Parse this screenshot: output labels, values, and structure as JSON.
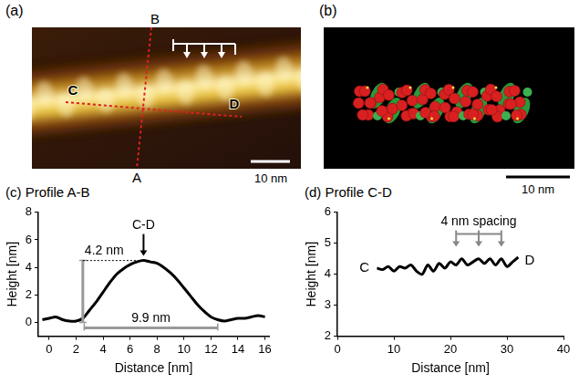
{
  "images": [
    {
      "panel": "(a)",
      "markers": [
        "A",
        "B",
        "C",
        "D"
      ],
      "scale_bar": "10 nm"
    },
    {
      "panel": "(b)",
      "scale_bar": "10 nm"
    }
  ],
  "chart_data": [
    {
      "panel": "(c)",
      "type": "line",
      "title": "Profile A-B",
      "x_label": "Distance [nm]",
      "y_label": "Height [nm]",
      "x": [
        -0.5,
        0,
        0.5,
        1,
        1.5,
        2,
        2.5,
        3,
        3.5,
        4,
        4.5,
        5,
        5.5,
        6,
        6.5,
        7,
        7.5,
        8,
        8.5,
        9,
        9.5,
        10,
        10.5,
        11,
        11.5,
        12,
        12.5,
        13,
        13.5,
        14,
        14.5,
        15,
        15.5,
        16
      ],
      "values": [
        0.2,
        0.3,
        0.4,
        0.2,
        0.1,
        0.1,
        0.3,
        0.9,
        1.5,
        2.2,
        2.9,
        3.5,
        3.9,
        4.2,
        4.4,
        4.5,
        4.4,
        4.3,
        4.0,
        3.6,
        3.1,
        2.5,
        1.9,
        1.3,
        0.8,
        0.4,
        0.2,
        0.1,
        0.2,
        0.3,
        0.3,
        0.4,
        0.5,
        0.4
      ],
      "color": "#000000",
      "xlim": [
        -0.8,
        16.3
      ],
      "xticks": [
        0,
        2,
        4,
        6,
        8,
        10,
        12,
        14,
        16
      ],
      "ylim": [
        -1,
        8
      ],
      "yticks": [
        0,
        2,
        4,
        6,
        8
      ],
      "grid": false,
      "annotations": [
        {
          "kind": "height",
          "text": "4.2 nm",
          "x": 2.5,
          "y0": 0,
          "y1": 4.5,
          "x_peak": 7
        },
        {
          "kind": "width",
          "text": "9.9 nm",
          "x0": 2.6,
          "x1": 12.5,
          "y": -0.4
        },
        {
          "kind": "arrow",
          "text": "C-D",
          "x": 7,
          "y": 4.7
        }
      ]
    },
    {
      "panel": "(d)",
      "type": "line",
      "title": "Profile C-D",
      "x_label": "Distance [nm]",
      "y_label": "Height [nm]",
      "x": [
        7,
        8,
        9,
        10,
        11,
        12,
        13,
        14,
        15,
        16,
        17,
        18,
        19,
        20,
        21,
        22,
        23,
        24,
        25,
        26,
        27,
        28,
        29,
        30,
        31,
        32
      ],
      "values": [
        4.2,
        4.15,
        4.25,
        4.1,
        4.25,
        4.2,
        4.3,
        4.1,
        4.0,
        4.3,
        4.1,
        4.35,
        4.2,
        4.4,
        4.3,
        4.5,
        4.3,
        4.4,
        4.5,
        4.35,
        4.5,
        4.3,
        4.5,
        4.25,
        4.4,
        4.55
      ],
      "color": "#000000",
      "xlim": [
        0,
        40
      ],
      "xticks": [
        0,
        10,
        20,
        30,
        40
      ],
      "ylim": [
        2,
        6
      ],
      "yticks": [
        2,
        3,
        4,
        5,
        6
      ],
      "grid": false,
      "annotations": [
        {
          "kind": "label",
          "text": "C",
          "x": 4.8,
          "y": 4.2
        },
        {
          "kind": "label",
          "text": "D",
          "x": 34,
          "y": 4.45
        },
        {
          "kind": "spacing",
          "text": "4 nm spacing",
          "x": [
            21,
            25,
            29
          ],
          "y": 5.3
        }
      ]
    }
  ]
}
